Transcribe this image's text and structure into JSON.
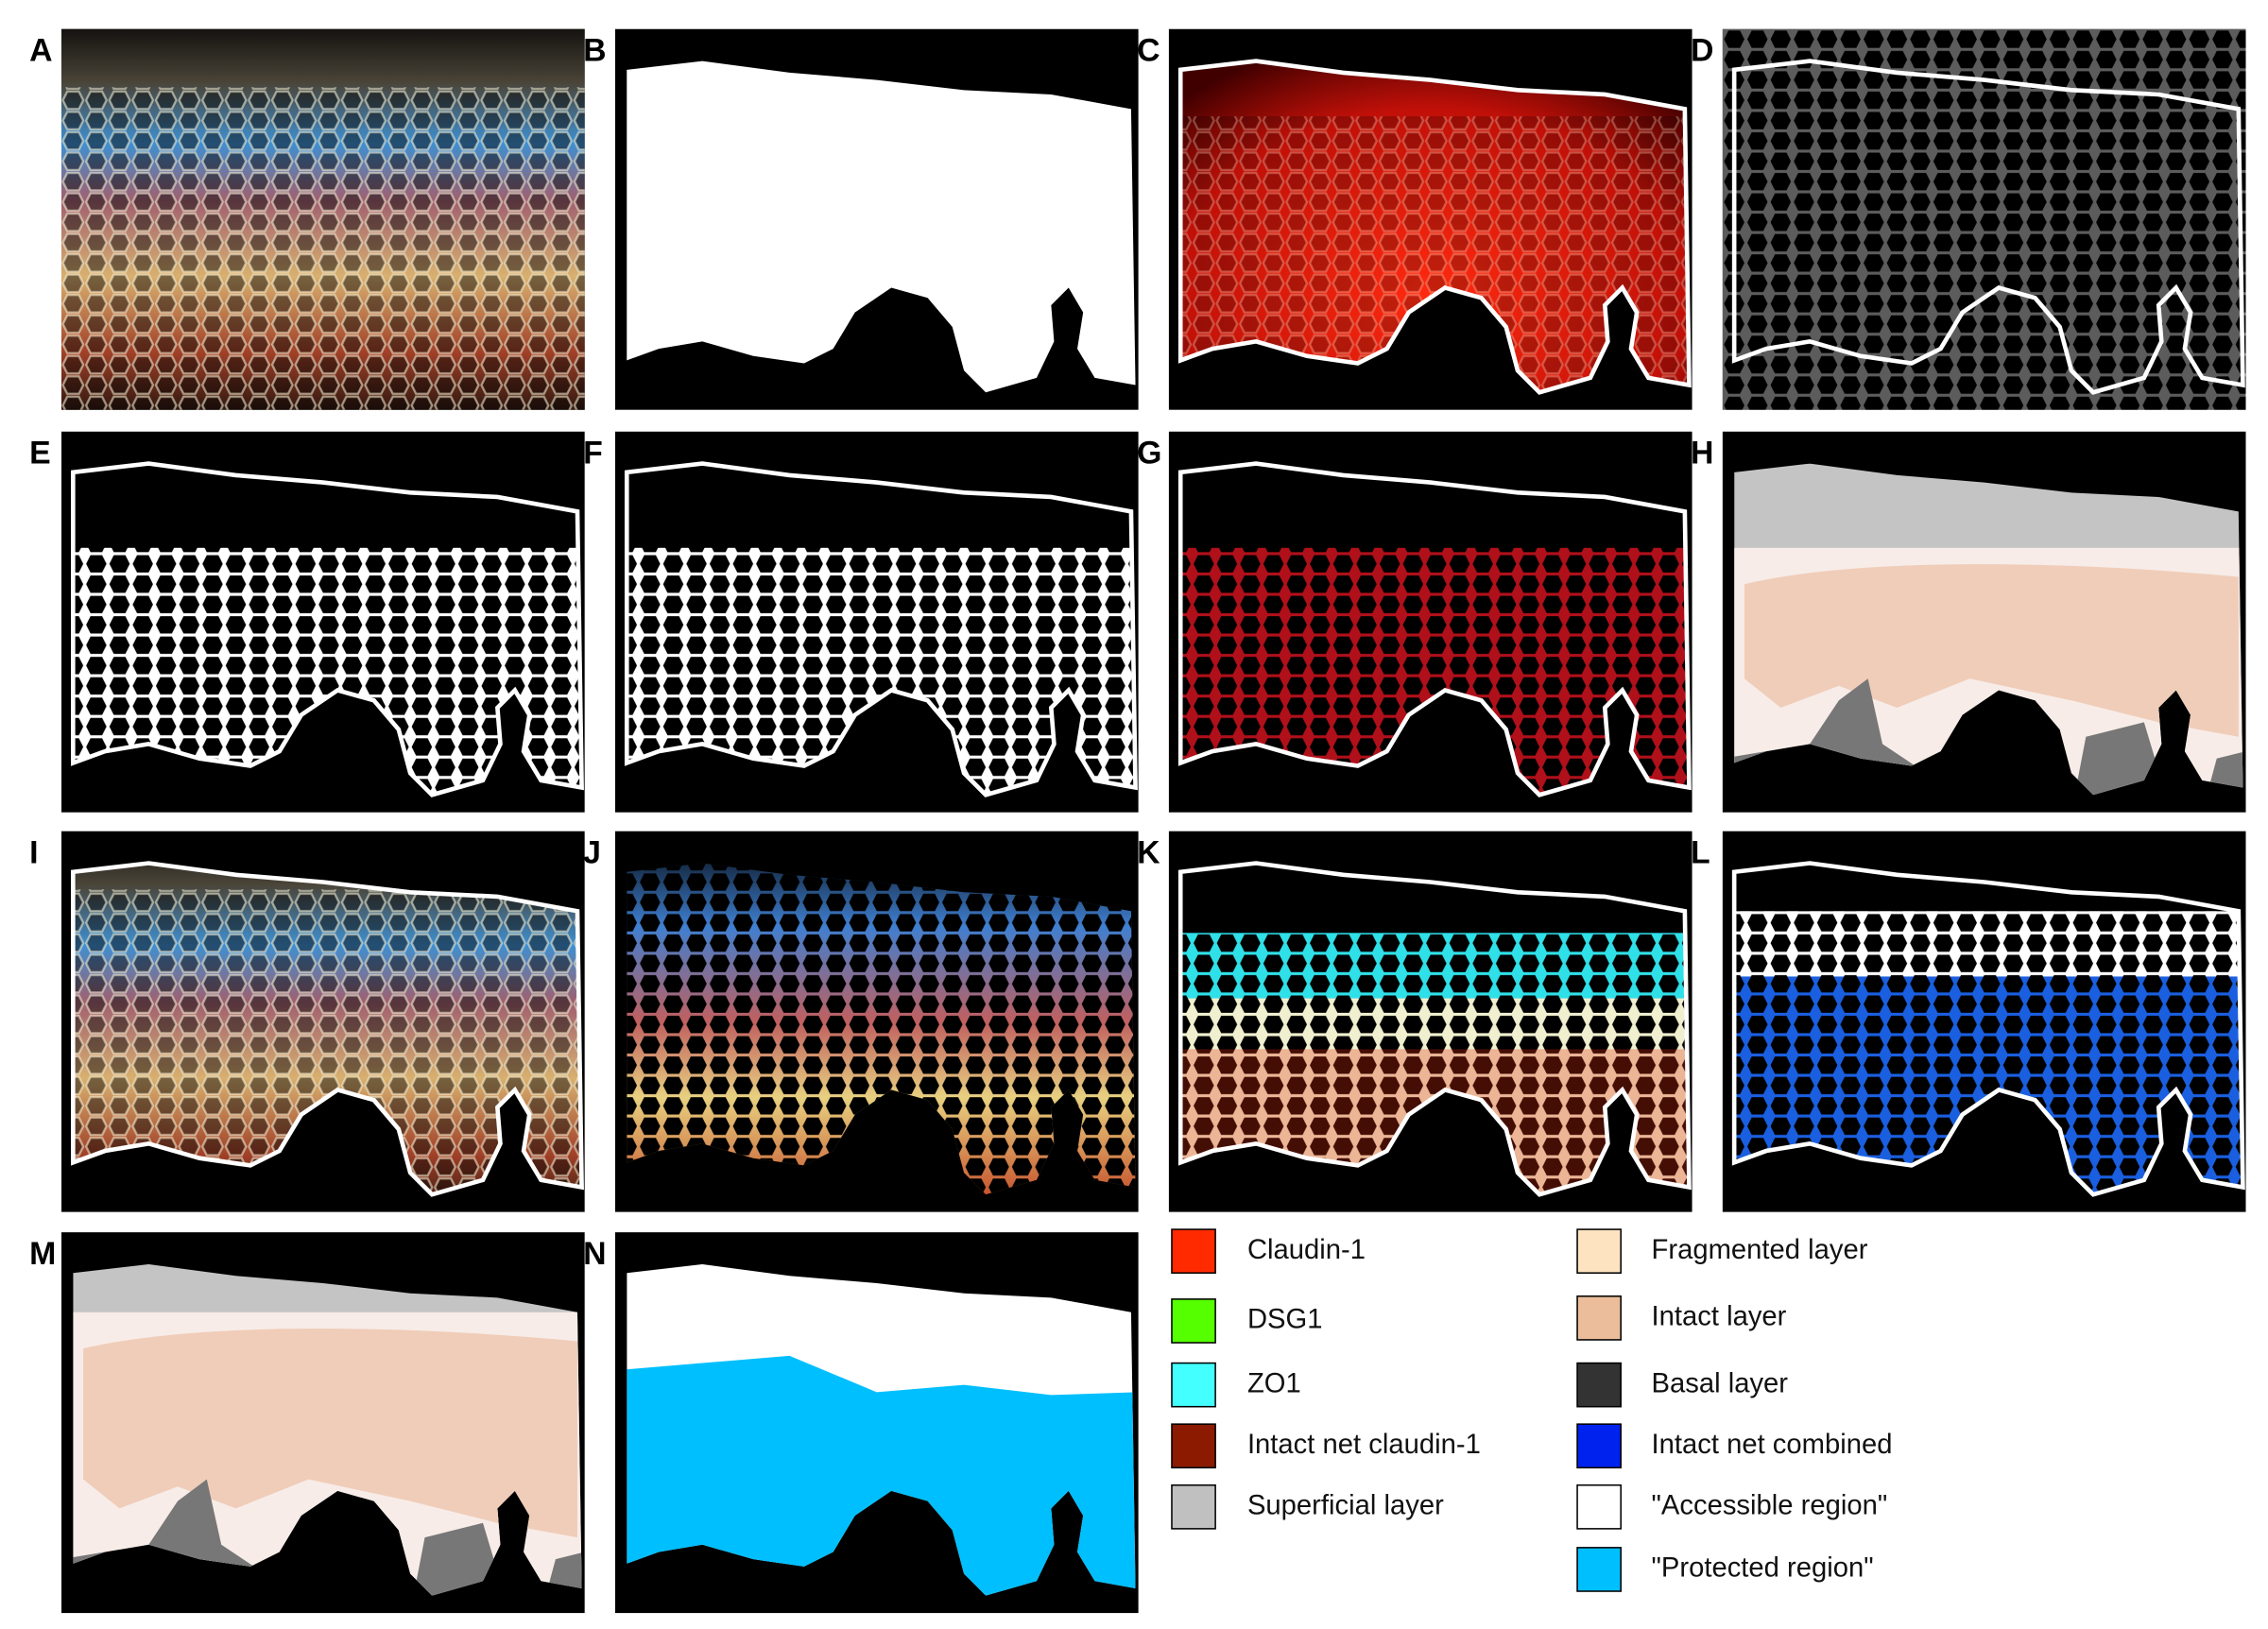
{
  "panels": [
    {
      "label": "A"
    },
    {
      "label": "B"
    },
    {
      "label": "C"
    },
    {
      "label": "D"
    },
    {
      "label": "E"
    },
    {
      "label": "F"
    },
    {
      "label": "G"
    },
    {
      "label": "H"
    },
    {
      "label": "I"
    },
    {
      "label": "J"
    },
    {
      "label": "K"
    },
    {
      "label": "L"
    },
    {
      "label": "M"
    },
    {
      "label": "N"
    }
  ],
  "legend": [
    {
      "label": "Claudin-1",
      "color": "#ff2a00"
    },
    {
      "label": "DSG1",
      "color": "#55ff00"
    },
    {
      "label": "ZO1",
      "color": "#44ffff"
    },
    {
      "label": "Intact net claudin-1",
      "color": "#8b1a00"
    },
    {
      "label": "Superficial layer",
      "color": "#c0c0c0"
    },
    {
      "label": "Fragmented layer",
      "color": "#fde3c0"
    },
    {
      "label": "Intact layer",
      "color": "#ebbd9a"
    },
    {
      "label": "Basal layer",
      "color": "#333333"
    },
    {
      "label": "Intact net combined",
      "color": "#0022ee"
    },
    {
      "label": "\"Accessible region\"",
      "color": "#ffffff"
    },
    {
      "label": "\"Protected region\"",
      "color": "#00bfff"
    }
  ]
}
